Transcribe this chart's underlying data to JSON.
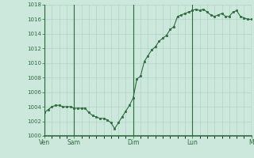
{
  "bg_color": "#cce8dc",
  "grid_color": "#aacfbe",
  "line_color": "#2d6b3c",
  "marker_color": "#2d6b3c",
  "axis_label_color": "#2d6b3c",
  "axis_line_color": "#2d6b3c",
  "ylim": [
    1000,
    1018
  ],
  "yticks": [
    1000,
    1002,
    1004,
    1006,
    1008,
    1010,
    1012,
    1014,
    1016,
    1018
  ],
  "day_labels": [
    "Ven",
    "Sam",
    "Dim",
    "Lun",
    "M"
  ],
  "day_positions": [
    0,
    8,
    24,
    40,
    56
  ],
  "x_values": [
    0,
    1,
    2,
    3,
    4,
    5,
    6,
    7,
    8,
    9,
    10,
    11,
    12,
    13,
    14,
    15,
    16,
    17,
    18,
    19,
    20,
    21,
    22,
    23,
    24,
    25,
    26,
    27,
    28,
    29,
    30,
    31,
    32,
    33,
    34,
    35,
    36,
    37,
    38,
    39,
    40,
    41,
    42,
    43,
    44,
    45,
    46,
    47,
    48,
    49,
    50,
    51,
    52,
    53,
    54,
    55,
    56
  ],
  "y_values": [
    1003.2,
    1003.6,
    1004.0,
    1004.2,
    1004.2,
    1004.0,
    1004.0,
    1004.0,
    1003.8,
    1003.8,
    1003.8,
    1003.8,
    1003.2,
    1002.8,
    1002.6,
    1002.4,
    1002.4,
    1002.2,
    1001.8,
    1001.0,
    1001.8,
    1002.6,
    1003.4,
    1004.2,
    1005.2,
    1007.8,
    1008.2,
    1010.2,
    1011.0,
    1011.8,
    1012.2,
    1013.0,
    1013.4,
    1013.8,
    1014.6,
    1015.0,
    1016.4,
    1016.6,
    1016.8,
    1017.0,
    1017.2,
    1017.4,
    1017.2,
    1017.4,
    1017.0,
    1016.6,
    1016.4,
    1016.6,
    1016.8,
    1016.4,
    1016.4,
    1017.0,
    1017.2,
    1016.4,
    1016.2,
    1016.0,
    1016.0
  ],
  "xlim": [
    0,
    56
  ]
}
